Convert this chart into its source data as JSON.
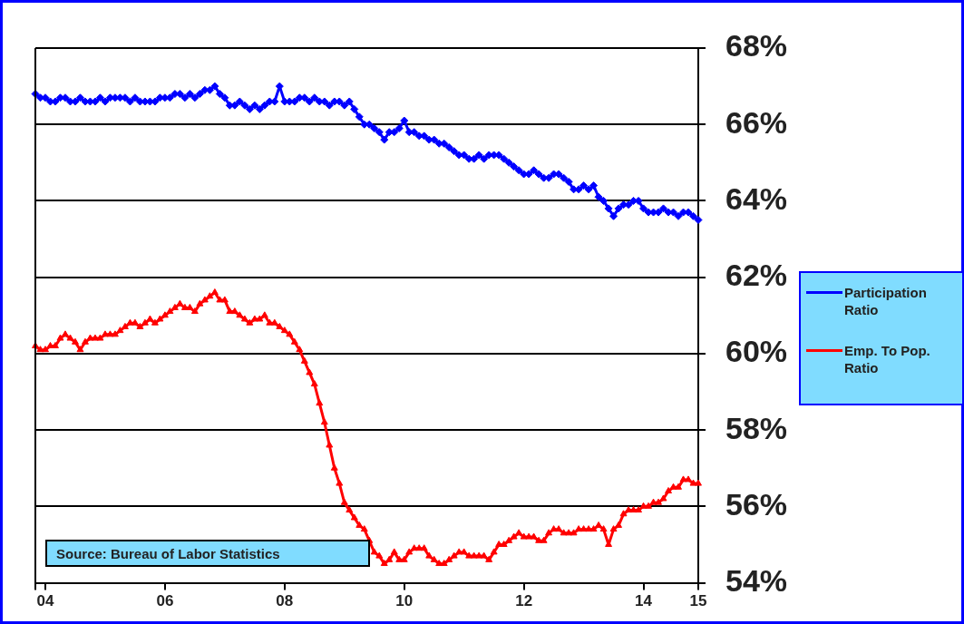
{
  "chart_data": {
    "type": "line",
    "categories": [
      null,
      null,
      "04",
      null,
      null,
      null,
      null,
      null,
      null,
      null,
      null,
      null,
      null,
      null,
      null,
      null,
      null,
      null,
      null,
      null,
      null,
      null,
      null,
      null,
      null,
      null,
      "06",
      null,
      null,
      null,
      null,
      null,
      null,
      null,
      null,
      null,
      null,
      null,
      null,
      null,
      null,
      null,
      null,
      null,
      null,
      null,
      null,
      null,
      null,
      null,
      "08",
      null,
      null,
      null,
      null,
      null,
      null,
      null,
      null,
      null,
      null,
      null,
      null,
      null,
      null,
      null,
      null,
      null,
      null,
      null,
      null,
      null,
      null,
      null,
      "10",
      null,
      null,
      null,
      null,
      null,
      null,
      null,
      null,
      null,
      null,
      null,
      null,
      null,
      null,
      null,
      null,
      null,
      null,
      null,
      null,
      null,
      null,
      null,
      "12",
      null,
      null,
      null,
      null,
      null,
      null,
      null,
      null,
      null,
      null,
      null,
      null,
      null,
      null,
      null,
      null,
      null,
      null,
      null,
      null,
      null,
      null,
      null,
      "14",
      null,
      null,
      null,
      null,
      null,
      null,
      null,
      null,
      null,
      null,
      "15"
    ],
    "series": [
      {
        "name": "Participation Ratio",
        "color": "#0000ff",
        "marker": "diamond",
        "values": [
          66.8,
          66.7,
          66.7,
          66.6,
          66.6,
          66.7,
          66.7,
          66.6,
          66.6,
          66.7,
          66.6,
          66.6,
          66.6,
          66.7,
          66.6,
          66.7,
          66.7,
          66.7,
          66.7,
          66.6,
          66.7,
          66.6,
          66.6,
          66.6,
          66.6,
          66.7,
          66.7,
          66.7,
          66.8,
          66.8,
          66.7,
          66.8,
          66.7,
          66.8,
          66.9,
          66.9,
          67.0,
          66.8,
          66.7,
          66.5,
          66.5,
          66.6,
          66.5,
          66.4,
          66.5,
          66.4,
          66.5,
          66.6,
          66.6,
          67.0,
          66.6,
          66.6,
          66.6,
          66.7,
          66.7,
          66.6,
          66.7,
          66.6,
          66.6,
          66.5,
          66.6,
          66.6,
          66.5,
          66.6,
          66.4,
          66.2,
          66.0,
          66.0,
          65.9,
          65.8,
          65.6,
          65.8,
          65.8,
          65.9,
          66.1,
          65.8,
          65.8,
          65.7,
          65.7,
          65.6,
          65.6,
          65.5,
          65.5,
          65.4,
          65.3,
          65.2,
          65.2,
          65.1,
          65.1,
          65.2,
          65.1,
          65.2,
          65.2,
          65.2,
          65.1,
          65.0,
          64.9,
          64.8,
          64.7,
          64.7,
          64.8,
          64.7,
          64.6,
          64.6,
          64.7,
          64.7,
          64.6,
          64.5,
          64.3,
          64.3,
          64.4,
          64.3,
          64.4,
          64.1,
          64.0,
          63.8,
          63.6,
          63.8,
          63.9,
          63.9,
          64.0,
          64.0,
          63.8,
          63.7,
          63.7,
          63.7,
          63.8,
          63.7,
          63.7,
          63.6,
          63.7,
          63.7,
          63.6,
          63.5
        ]
      },
      {
        "name": "Emp. To Pop. Ratio",
        "color": "#ff0000",
        "marker": "triangle",
        "values": [
          60.2,
          60.1,
          60.1,
          60.2,
          60.2,
          60.4,
          60.5,
          60.4,
          60.3,
          60.1,
          60.3,
          60.4,
          60.4,
          60.4,
          60.5,
          60.5,
          60.5,
          60.6,
          60.7,
          60.8,
          60.8,
          60.7,
          60.8,
          60.9,
          60.8,
          60.9,
          61.0,
          61.1,
          61.2,
          61.3,
          61.2,
          61.2,
          61.1,
          61.3,
          61.4,
          61.5,
          61.6,
          61.4,
          61.4,
          61.1,
          61.1,
          61.0,
          60.9,
          60.8,
          60.9,
          60.9,
          61.0,
          60.8,
          60.8,
          60.7,
          60.6,
          60.5,
          60.3,
          60.1,
          59.8,
          59.5,
          59.2,
          58.7,
          58.2,
          57.6,
          57.0,
          56.6,
          56.1,
          55.9,
          55.7,
          55.5,
          55.4,
          55.1,
          54.8,
          54.7,
          54.5,
          54.6,
          54.8,
          54.6,
          54.6,
          54.8,
          54.9,
          54.9,
          54.9,
          54.7,
          54.6,
          54.5,
          54.5,
          54.6,
          54.7,
          54.8,
          54.8,
          54.7,
          54.7,
          54.7,
          54.7,
          54.6,
          54.8,
          55.0,
          55.0,
          55.1,
          55.2,
          55.3,
          55.2,
          55.2,
          55.2,
          55.1,
          55.1,
          55.3,
          55.4,
          55.4,
          55.3,
          55.3,
          55.3,
          55.4,
          55.4,
          55.4,
          55.4,
          55.5,
          55.4,
          55.0,
          55.4,
          55.5,
          55.8,
          55.9,
          55.9,
          55.9,
          56.0,
          56.0,
          56.1,
          56.1,
          56.2,
          56.4,
          56.5,
          56.5,
          56.7,
          56.7,
          56.6,
          56.6
        ]
      }
    ],
    "ylim": [
      54,
      68
    ],
    "yticks": [
      {
        "value": 54,
        "label": "54%"
      },
      {
        "value": 56,
        "label": "56%"
      },
      {
        "value": 58,
        "label": "58%"
      },
      {
        "value": 60,
        "label": "60%"
      },
      {
        "value": 62,
        "label": "62%"
      },
      {
        "value": 64,
        "label": "64%"
      },
      {
        "value": 66,
        "label": "66%"
      },
      {
        "value": 68,
        "label": "68%"
      }
    ],
    "grid": "y",
    "legend": "right",
    "line_style": "solid",
    "annotations": [
      "Source:  Bureau of Labor Statistics"
    ]
  }
}
